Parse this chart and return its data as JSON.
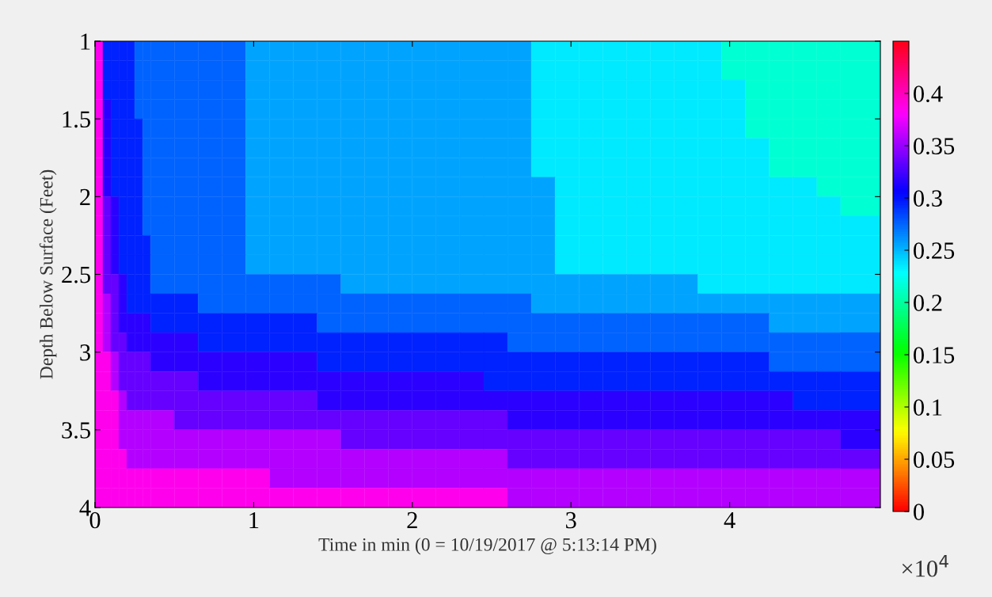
{
  "chart_data": {
    "type": "heatmap",
    "xlabel": "Time in min (0 = 10/19/2017 @ 5:13:14 PM)",
    "ylabel": "Depth Below Surface (Feet)",
    "annotations": [
      "×10$^{4}$"
    ],
    "x": [
      0.025,
      0.075,
      0.125,
      0.175,
      0.225,
      0.275,
      0.325,
      0.425,
      0.575,
      0.725,
      0.875,
      1.025,
      1.175,
      1.325,
      1.475,
      1.625,
      1.775,
      1.925,
      2.075,
      2.225,
      2.375,
      2.525,
      2.675,
      2.825,
      2.975,
      3.125,
      3.275,
      3.425,
      3.575,
      3.725,
      3.875,
      4.025,
      4.175,
      4.325,
      4.475,
      4.625,
      4.825
    ],
    "xlim": [
      0,
      4.95
    ],
    "xticks": [
      0,
      1,
      2,
      3,
      4
    ],
    "ylim": [
      4,
      1
    ],
    "yticks": [
      1,
      1.5,
      2,
      2.5,
      3,
      3.5,
      4
    ],
    "clim": [
      0,
      0.45
    ],
    "cticks": [
      0,
      0.05,
      0.1,
      0.15,
      0.2,
      0.25,
      0.3,
      0.35,
      0.4
    ],
    "grid": false,
    "cells": [
      [
        0.385,
        0.295,
        0.295,
        0.295,
        0.295,
        0.275,
        0.275,
        0.275,
        0.275,
        0.275,
        0.275,
        0.255,
        0.255,
        0.255,
        0.255,
        0.255,
        0.255,
        0.255,
        0.255,
        0.255,
        0.255,
        0.255,
        0.255,
        0.235,
        0.235,
        0.235,
        0.235,
        0.235,
        0.235,
        0.235,
        0.235,
        0.215,
        0.215,
        0.215,
        0.215,
        0.215,
        0.215
      ],
      [
        0.385,
        0.295,
        0.295,
        0.295,
        0.295,
        0.275,
        0.275,
        0.275,
        0.275,
        0.275,
        0.275,
        0.255,
        0.255,
        0.255,
        0.255,
        0.255,
        0.255,
        0.255,
        0.255,
        0.255,
        0.255,
        0.255,
        0.255,
        0.235,
        0.235,
        0.235,
        0.235,
        0.235,
        0.235,
        0.235,
        0.235,
        0.215,
        0.215,
        0.215,
        0.215,
        0.215,
        0.215
      ],
      [
        0.385,
        0.295,
        0.295,
        0.295,
        0.295,
        0.275,
        0.275,
        0.275,
        0.275,
        0.275,
        0.275,
        0.255,
        0.255,
        0.255,
        0.255,
        0.255,
        0.255,
        0.255,
        0.255,
        0.255,
        0.255,
        0.255,
        0.255,
        0.235,
        0.235,
        0.235,
        0.235,
        0.235,
        0.235,
        0.235,
        0.235,
        0.235,
        0.215,
        0.215,
        0.215,
        0.215,
        0.215
      ],
      [
        0.385,
        0.318,
        0.295,
        0.295,
        0.295,
        0.275,
        0.275,
        0.275,
        0.275,
        0.275,
        0.275,
        0.255,
        0.255,
        0.255,
        0.255,
        0.255,
        0.255,
        0.255,
        0.255,
        0.255,
        0.255,
        0.255,
        0.255,
        0.235,
        0.235,
        0.235,
        0.235,
        0.235,
        0.235,
        0.235,
        0.235,
        0.235,
        0.215,
        0.215,
        0.215,
        0.215,
        0.215
      ],
      [
        0.385,
        0.318,
        0.295,
        0.295,
        0.295,
        0.295,
        0.275,
        0.275,
        0.275,
        0.275,
        0.275,
        0.255,
        0.255,
        0.255,
        0.255,
        0.255,
        0.255,
        0.255,
        0.255,
        0.255,
        0.255,
        0.255,
        0.255,
        0.235,
        0.235,
        0.235,
        0.235,
        0.235,
        0.235,
        0.235,
        0.235,
        0.235,
        0.215,
        0.215,
        0.215,
        0.215,
        0.215
      ],
      [
        0.385,
        0.318,
        0.295,
        0.295,
        0.295,
        0.295,
        0.275,
        0.275,
        0.275,
        0.275,
        0.275,
        0.255,
        0.255,
        0.255,
        0.255,
        0.255,
        0.255,
        0.255,
        0.255,
        0.255,
        0.255,
        0.255,
        0.255,
        0.235,
        0.235,
        0.235,
        0.235,
        0.235,
        0.235,
        0.235,
        0.235,
        0.235,
        0.235,
        0.215,
        0.215,
        0.215,
        0.215
      ],
      [
        0.385,
        0.318,
        0.295,
        0.295,
        0.295,
        0.295,
        0.275,
        0.275,
        0.275,
        0.275,
        0.275,
        0.255,
        0.255,
        0.255,
        0.255,
        0.255,
        0.255,
        0.255,
        0.255,
        0.255,
        0.255,
        0.255,
        0.255,
        0.235,
        0.235,
        0.235,
        0.235,
        0.235,
        0.235,
        0.235,
        0.235,
        0.235,
        0.235,
        0.215,
        0.215,
        0.215,
        0.215
      ],
      [
        0.385,
        0.318,
        0.295,
        0.295,
        0.295,
        0.295,
        0.275,
        0.275,
        0.275,
        0.275,
        0.275,
        0.255,
        0.255,
        0.255,
        0.255,
        0.255,
        0.255,
        0.255,
        0.255,
        0.255,
        0.255,
        0.255,
        0.255,
        0.255,
        0.235,
        0.235,
        0.235,
        0.235,
        0.235,
        0.235,
        0.235,
        0.235,
        0.235,
        0.235,
        0.235,
        0.215,
        0.215
      ],
      [
        0.385,
        0.335,
        0.318,
        0.295,
        0.295,
        0.295,
        0.275,
        0.275,
        0.275,
        0.275,
        0.275,
        0.255,
        0.255,
        0.255,
        0.255,
        0.255,
        0.255,
        0.255,
        0.255,
        0.255,
        0.255,
        0.255,
        0.255,
        0.255,
        0.235,
        0.235,
        0.235,
        0.235,
        0.235,
        0.235,
        0.235,
        0.235,
        0.235,
        0.235,
        0.235,
        0.235,
        0.215
      ],
      [
        0.385,
        0.335,
        0.318,
        0.295,
        0.295,
        0.295,
        0.275,
        0.275,
        0.275,
        0.275,
        0.275,
        0.255,
        0.255,
        0.255,
        0.255,
        0.255,
        0.255,
        0.255,
        0.255,
        0.255,
        0.255,
        0.255,
        0.255,
        0.255,
        0.235,
        0.235,
        0.235,
        0.235,
        0.235,
        0.235,
        0.235,
        0.235,
        0.235,
        0.235,
        0.235,
        0.235,
        0.235
      ],
      [
        0.385,
        0.335,
        0.318,
        0.295,
        0.295,
        0.295,
        0.295,
        0.275,
        0.275,
        0.275,
        0.275,
        0.255,
        0.255,
        0.255,
        0.255,
        0.255,
        0.255,
        0.255,
        0.255,
        0.255,
        0.255,
        0.255,
        0.255,
        0.255,
        0.235,
        0.235,
        0.235,
        0.235,
        0.235,
        0.235,
        0.235,
        0.235,
        0.235,
        0.235,
        0.235,
        0.235,
        0.235
      ],
      [
        0.385,
        0.335,
        0.318,
        0.295,
        0.295,
        0.295,
        0.295,
        0.275,
        0.275,
        0.275,
        0.275,
        0.255,
        0.255,
        0.255,
        0.255,
        0.255,
        0.255,
        0.255,
        0.255,
        0.255,
        0.255,
        0.255,
        0.255,
        0.255,
        0.235,
        0.235,
        0.235,
        0.235,
        0.235,
        0.235,
        0.235,
        0.235,
        0.235,
        0.235,
        0.235,
        0.235,
        0.235
      ],
      [
        0.385,
        0.335,
        0.335,
        0.318,
        0.295,
        0.295,
        0.295,
        0.275,
        0.275,
        0.275,
        0.275,
        0.275,
        0.275,
        0.275,
        0.275,
        0.255,
        0.255,
        0.255,
        0.255,
        0.255,
        0.255,
        0.255,
        0.255,
        0.255,
        0.255,
        0.255,
        0.255,
        0.255,
        0.255,
        0.255,
        0.235,
        0.235,
        0.235,
        0.235,
        0.235,
        0.235,
        0.235
      ],
      [
        0.385,
        0.358,
        0.335,
        0.318,
        0.295,
        0.295,
        0.295,
        0.295,
        0.295,
        0.275,
        0.275,
        0.275,
        0.275,
        0.275,
        0.275,
        0.275,
        0.275,
        0.275,
        0.275,
        0.275,
        0.275,
        0.275,
        0.275,
        0.255,
        0.255,
        0.255,
        0.255,
        0.255,
        0.255,
        0.255,
        0.255,
        0.255,
        0.255,
        0.255,
        0.255,
        0.255,
        0.255
      ],
      [
        0.385,
        0.358,
        0.335,
        0.318,
        0.318,
        0.318,
        0.318,
        0.295,
        0.295,
        0.295,
        0.295,
        0.295,
        0.295,
        0.295,
        0.275,
        0.275,
        0.275,
        0.275,
        0.275,
        0.275,
        0.275,
        0.275,
        0.275,
        0.275,
        0.275,
        0.275,
        0.275,
        0.275,
        0.275,
        0.275,
        0.275,
        0.275,
        0.275,
        0.255,
        0.255,
        0.255,
        0.255
      ],
      [
        0.385,
        0.358,
        0.335,
        0.335,
        0.318,
        0.318,
        0.318,
        0.318,
        0.318,
        0.295,
        0.295,
        0.295,
        0.295,
        0.295,
        0.295,
        0.295,
        0.295,
        0.295,
        0.295,
        0.295,
        0.295,
        0.295,
        0.275,
        0.275,
        0.275,
        0.275,
        0.275,
        0.275,
        0.275,
        0.275,
        0.275,
        0.275,
        0.275,
        0.275,
        0.275,
        0.275,
        0.275
      ],
      [
        0.385,
        0.385,
        0.358,
        0.335,
        0.335,
        0.335,
        0.335,
        0.318,
        0.318,
        0.318,
        0.318,
        0.318,
        0.318,
        0.318,
        0.295,
        0.295,
        0.295,
        0.295,
        0.295,
        0.295,
        0.295,
        0.295,
        0.295,
        0.295,
        0.295,
        0.295,
        0.295,
        0.295,
        0.295,
        0.295,
        0.295,
        0.295,
        0.295,
        0.275,
        0.275,
        0.275,
        0.275
      ],
      [
        0.385,
        0.385,
        0.358,
        0.335,
        0.335,
        0.335,
        0.335,
        0.335,
        0.335,
        0.318,
        0.318,
        0.318,
        0.318,
        0.318,
        0.318,
        0.318,
        0.318,
        0.318,
        0.318,
        0.318,
        0.318,
        0.295,
        0.295,
        0.295,
        0.295,
        0.295,
        0.295,
        0.295,
        0.295,
        0.295,
        0.295,
        0.295,
        0.295,
        0.295,
        0.295,
        0.295,
        0.295
      ],
      [
        0.385,
        0.385,
        0.385,
        0.358,
        0.335,
        0.335,
        0.335,
        0.335,
        0.335,
        0.335,
        0.335,
        0.335,
        0.335,
        0.335,
        0.318,
        0.318,
        0.318,
        0.318,
        0.318,
        0.318,
        0.318,
        0.318,
        0.318,
        0.318,
        0.318,
        0.318,
        0.318,
        0.318,
        0.318,
        0.318,
        0.318,
        0.318,
        0.318,
        0.318,
        0.295,
        0.295,
        0.295
      ],
      [
        0.385,
        0.385,
        0.385,
        0.358,
        0.358,
        0.358,
        0.358,
        0.358,
        0.335,
        0.335,
        0.335,
        0.335,
        0.335,
        0.335,
        0.335,
        0.335,
        0.335,
        0.335,
        0.335,
        0.335,
        0.335,
        0.335,
        0.318,
        0.318,
        0.318,
        0.318,
        0.318,
        0.318,
        0.318,
        0.318,
        0.318,
        0.318,
        0.318,
        0.318,
        0.318,
        0.318,
        0.318
      ],
      [
        0.385,
        0.385,
        0.385,
        0.358,
        0.358,
        0.358,
        0.358,
        0.358,
        0.358,
        0.358,
        0.358,
        0.358,
        0.358,
        0.358,
        0.358,
        0.335,
        0.335,
        0.335,
        0.335,
        0.335,
        0.335,
        0.335,
        0.335,
        0.335,
        0.335,
        0.335,
        0.335,
        0.335,
        0.335,
        0.335,
        0.335,
        0.335,
        0.335,
        0.335,
        0.335,
        0.335,
        0.318
      ],
      [
        0.385,
        0.385,
        0.385,
        0.385,
        0.358,
        0.358,
        0.358,
        0.358,
        0.358,
        0.358,
        0.358,
        0.358,
        0.358,
        0.358,
        0.358,
        0.358,
        0.358,
        0.358,
        0.358,
        0.358,
        0.358,
        0.358,
        0.335,
        0.335,
        0.335,
        0.335,
        0.335,
        0.335,
        0.335,
        0.335,
        0.335,
        0.335,
        0.335,
        0.335,
        0.335,
        0.335,
        0.335
      ],
      [
        0.385,
        0.385,
        0.385,
        0.385,
        0.385,
        0.385,
        0.385,
        0.385,
        0.385,
        0.385,
        0.385,
        0.385,
        0.358,
        0.358,
        0.358,
        0.358,
        0.358,
        0.358,
        0.358,
        0.358,
        0.358,
        0.358,
        0.358,
        0.358,
        0.358,
        0.358,
        0.358,
        0.358,
        0.358,
        0.358,
        0.358,
        0.358,
        0.358,
        0.358,
        0.358,
        0.358,
        0.358
      ],
      [
        0.385,
        0.385,
        0.385,
        0.385,
        0.385,
        0.385,
        0.385,
        0.385,
        0.385,
        0.385,
        0.385,
        0.385,
        0.385,
        0.385,
        0.385,
        0.385,
        0.385,
        0.385,
        0.385,
        0.385,
        0.385,
        0.385,
        0.358,
        0.358,
        0.358,
        0.358,
        0.358,
        0.358,
        0.358,
        0.358,
        0.358,
        0.358,
        0.358,
        0.358,
        0.358,
        0.358,
        0.358
      ]
    ]
  }
}
